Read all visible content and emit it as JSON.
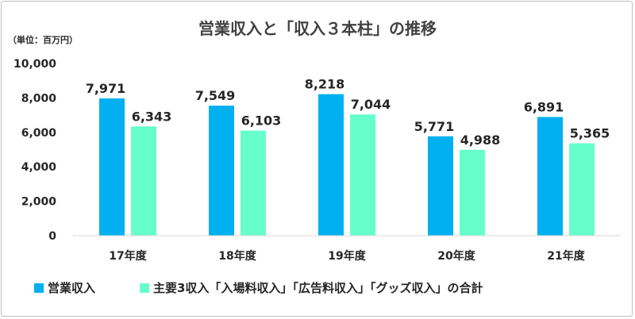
{
  "chart_data": {
    "type": "bar",
    "title": "営業収入と「収入３本柱」の推移",
    "unit_label": "（単位：百万円）",
    "categories": [
      "17年度",
      "18年度",
      "19年度",
      "20年度",
      "21年度"
    ],
    "series": [
      {
        "name": "営業収入",
        "color": "#00b0f0",
        "values": [
          7971,
          7549,
          8218,
          5771,
          6891
        ]
      },
      {
        "name": "主要3収入「入場料収入」「広告料収入」「グッズ収入」の合計",
        "color": "#66ffcc",
        "values": [
          6343,
          6103,
          7044,
          4988,
          5365
        ]
      }
    ],
    "ylim": [
      0,
      10000
    ],
    "yticks": [
      0,
      2000,
      4000,
      6000,
      8000,
      10000
    ],
    "ytick_labels": [
      "0",
      "2,000",
      "4,000",
      "6,000",
      "8,000",
      "10,000"
    ],
    "grid": false,
    "legend_position": "bottom",
    "xlabel": "",
    "ylabel": ""
  }
}
